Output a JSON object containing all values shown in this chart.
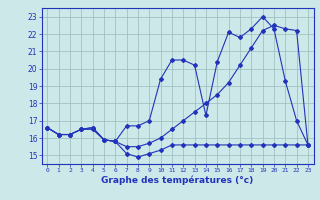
{
  "line1": [
    16.6,
    16.2,
    16.2,
    16.5,
    16.6,
    15.9,
    15.8,
    15.1,
    14.9,
    15.1,
    15.3,
    15.6,
    15.6,
    15.6,
    15.6,
    15.6,
    15.6,
    15.6,
    15.6,
    15.6,
    15.6,
    15.6,
    15.6,
    15.6
  ],
  "line2": [
    16.6,
    16.2,
    16.2,
    16.5,
    16.6,
    15.9,
    15.8,
    16.7,
    16.7,
    17.0,
    19.4,
    20.5,
    20.5,
    20.2,
    17.3,
    20.4,
    22.1,
    21.8,
    22.3,
    23.0,
    22.3,
    19.3,
    17.0,
    15.6
  ],
  "line3": [
    16.6,
    16.2,
    16.2,
    16.5,
    16.5,
    15.9,
    15.8,
    15.5,
    15.5,
    15.7,
    16.0,
    16.5,
    17.0,
    17.5,
    18.0,
    18.5,
    19.2,
    20.2,
    21.2,
    22.2,
    22.5,
    22.3,
    22.2,
    15.6
  ],
  "hours": [
    0,
    1,
    2,
    3,
    4,
    5,
    6,
    7,
    8,
    9,
    10,
    11,
    12,
    13,
    14,
    15,
    16,
    17,
    18,
    19,
    20,
    21,
    22,
    23
  ],
  "line_color": "#2233bb",
  "bg_color": "#cce8e8",
  "grid_color": "#99bbbb",
  "ylim": [
    14.5,
    23.5
  ],
  "yticks": [
    15,
    16,
    17,
    18,
    19,
    20,
    21,
    22,
    23
  ],
  "xlabel": "Graphe des températures (°c)"
}
